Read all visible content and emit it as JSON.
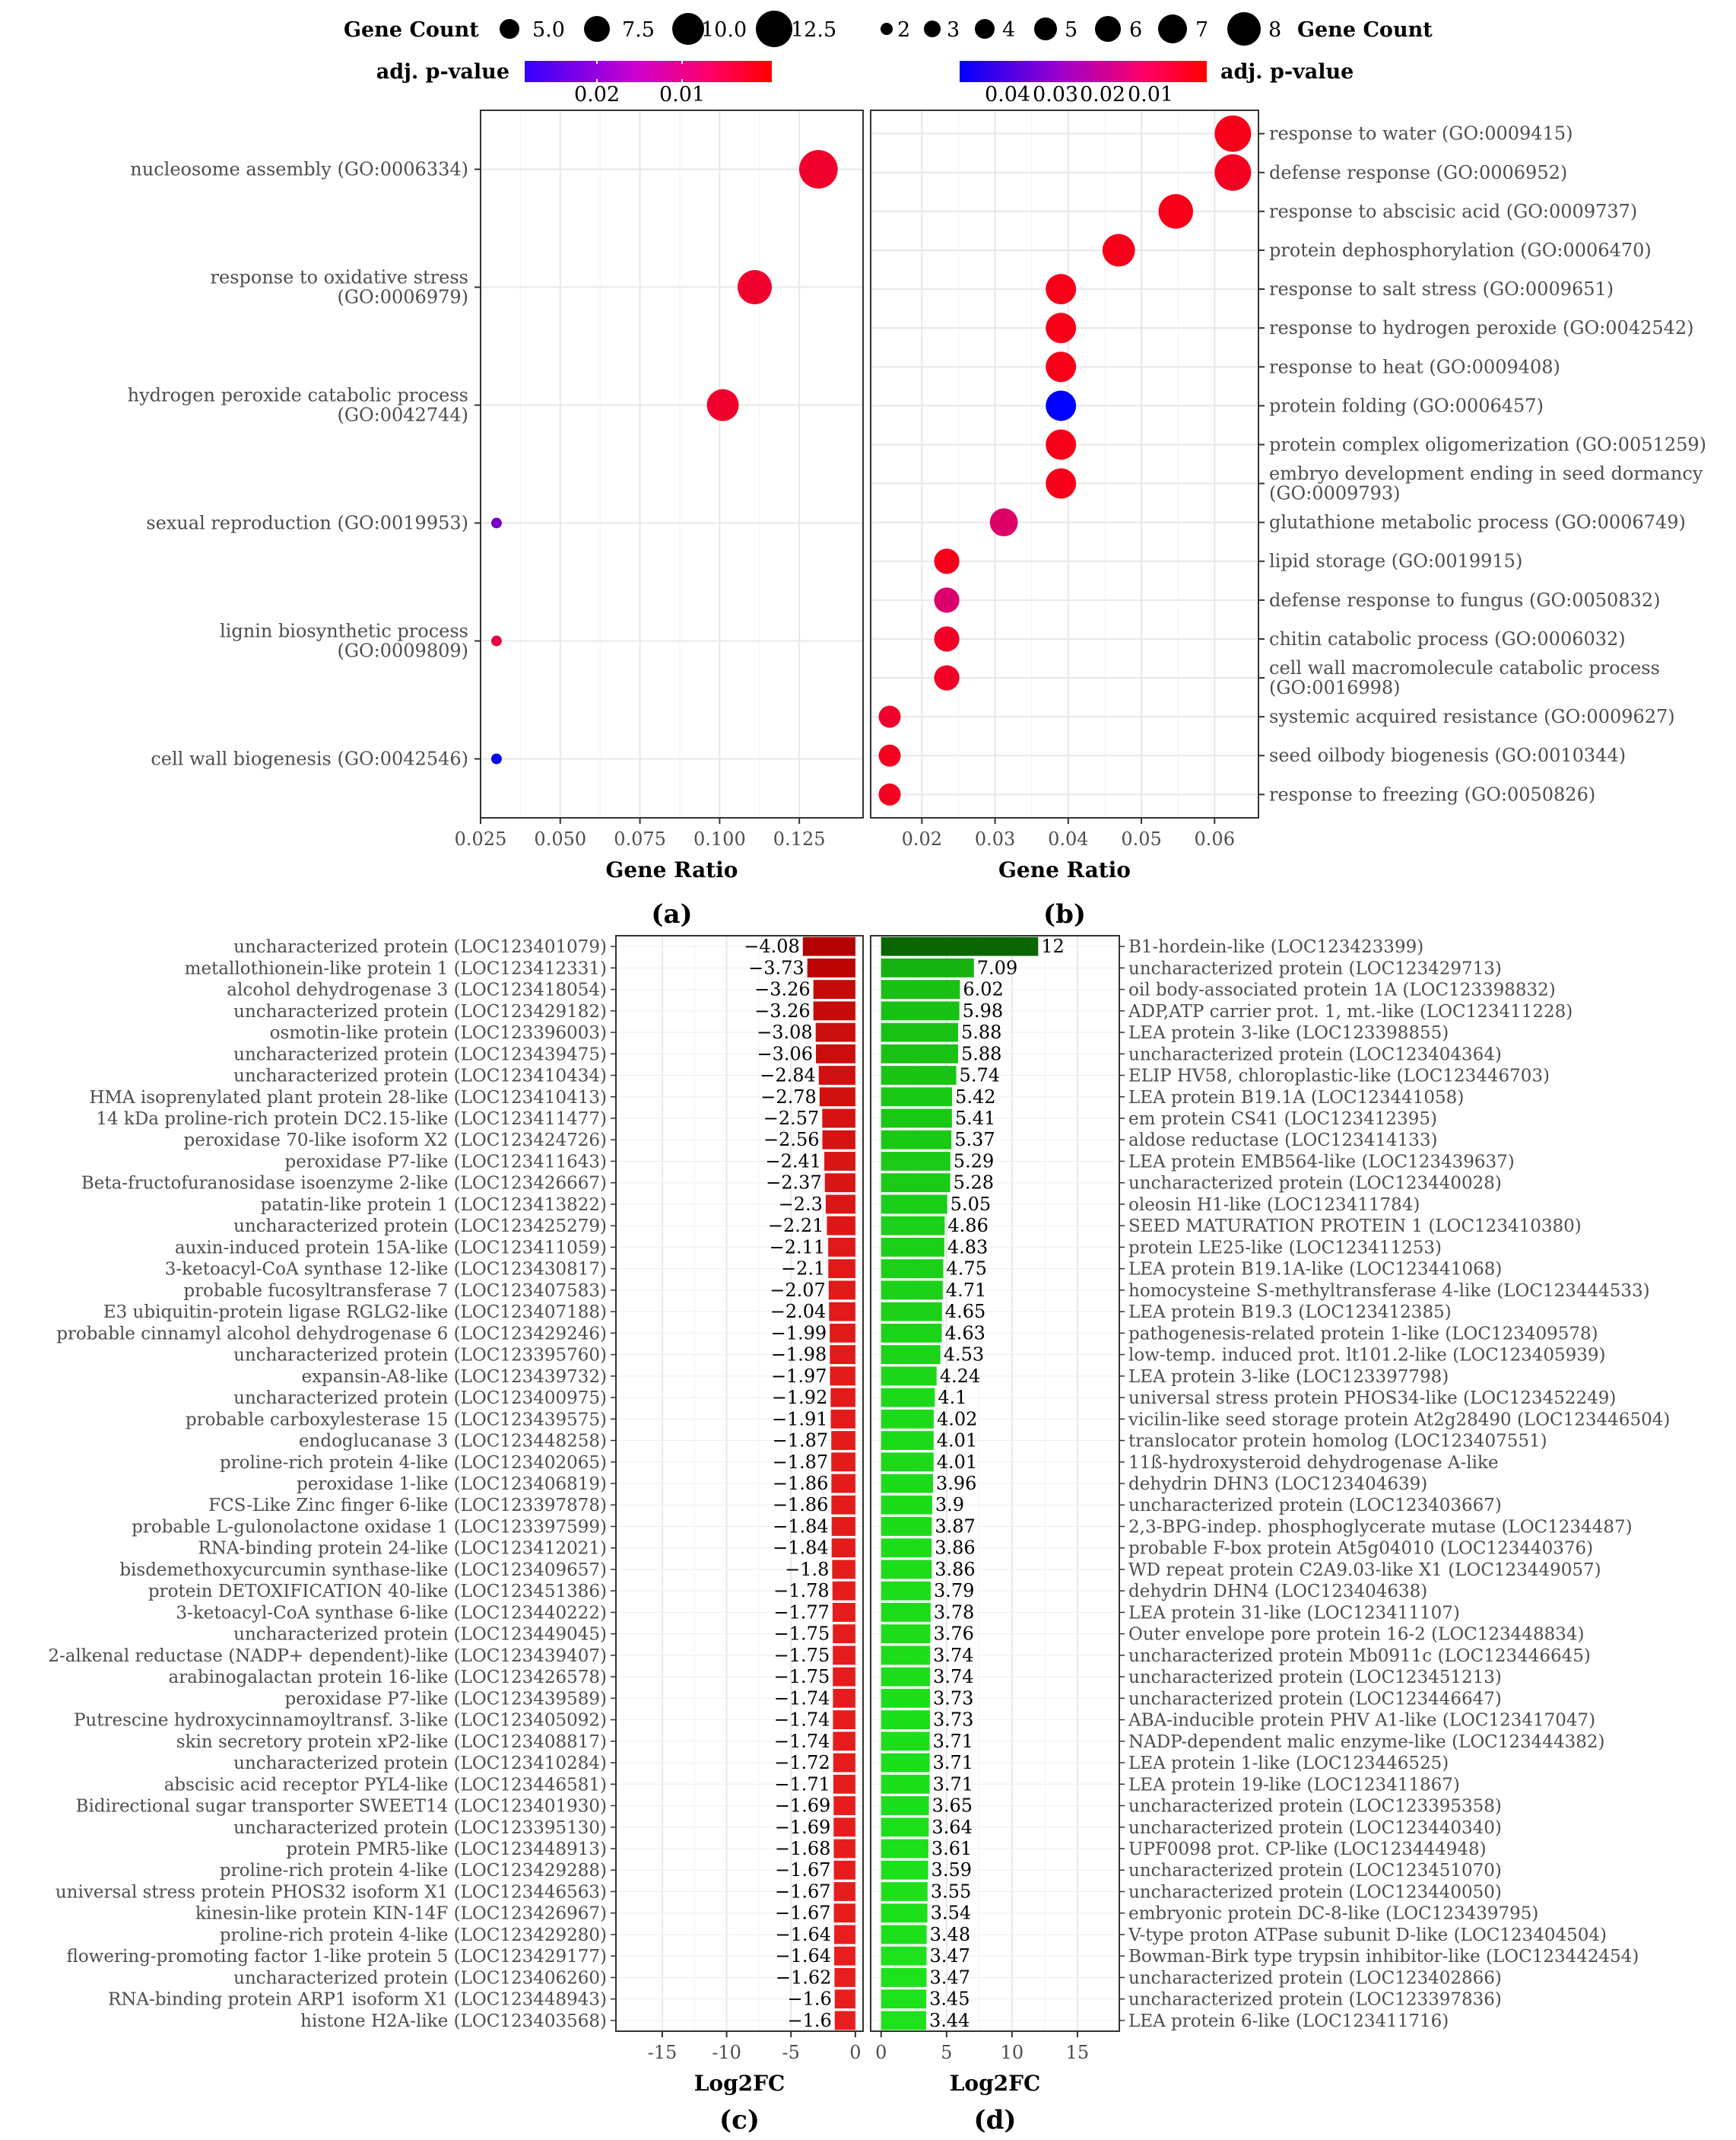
{
  "colors": {
    "p_high": "#0000ff",
    "p_mid": "#cc0099",
    "p_low": "#ff0000",
    "neg_strong": "#b30000",
    "neg": "#ff0000",
    "pos_strong": "#0a6600",
    "pos": "#00ff00"
  },
  "legends": {
    "left": {
      "size_title": "Gene Count",
      "size_keys": [
        "5.0",
        "7.5",
        "10.0",
        "12.5"
      ],
      "color_title": "adj. p-value",
      "color_ticks": [
        "0.02",
        "0.01"
      ]
    },
    "right": {
      "size_title": "Gene Count",
      "size_keys": [
        "2",
        "3",
        "4",
        "5",
        "6",
        "7",
        "8"
      ],
      "color_title": "adj. p-value",
      "color_ticks": [
        "0.04",
        "0.03",
        "0.02",
        "0.01"
      ]
    }
  },
  "chart_data": [
    {
      "panel": "(a)",
      "type": "scatter",
      "xlabel": "Gene Ratio",
      "ylabel": "",
      "xlim": [
        0.025,
        0.145
      ],
      "xticks": [
        "0.025",
        "0.050",
        "0.075",
        "0.100",
        "0.125"
      ],
      "grid": true,
      "points": [
        {
          "label": "nucleosome assembly (GO:0006334)",
          "x": 0.131,
          "count": 13,
          "padj": 0.004
        },
        {
          "label": "response to oxidative stress (GO:0006979)",
          "x": 0.111,
          "count": 11,
          "padj": 0.004
        },
        {
          "label": "hydrogen peroxide catabolic process (GO:0042744)",
          "x": 0.101,
          "count": 10,
          "padj": 0.004
        },
        {
          "label": "sexual reproduction (GO:0019953)",
          "x": 0.03,
          "count": 3,
          "padj": 0.02
        },
        {
          "label": "lignin biosynthetic process (GO:0009809)",
          "x": 0.03,
          "count": 3,
          "padj": 0.006
        },
        {
          "label": "cell wall biogenesis (GO:0042546)",
          "x": 0.03,
          "count": 3,
          "padj": 0.028
        }
      ]
    },
    {
      "panel": "(b)",
      "type": "scatter",
      "xlabel": "Gene Ratio",
      "ylabel": "",
      "xlim": [
        0.013,
        0.066
      ],
      "xticks": [
        "0.02",
        "0.03",
        "0.04",
        "0.05",
        "0.06"
      ],
      "grid": true,
      "points": [
        {
          "label": "response to water (GO:0009415)",
          "x": 0.0625,
          "count": 8,
          "padj": 0.004
        },
        {
          "label": "defense response (GO:0006952)",
          "x": 0.0625,
          "count": 8,
          "padj": 0.005
        },
        {
          "label": "response to abscisic acid (GO:0009737)",
          "x": 0.0547,
          "count": 7,
          "padj": 0.004
        },
        {
          "label": "protein dephosphorylation (GO:0006470)",
          "x": 0.0469,
          "count": 6,
          "padj": 0.004
        },
        {
          "label": "response to salt stress (GO:0009651)",
          "x": 0.039,
          "count": 5,
          "padj": 0.004
        },
        {
          "label": "response to hydrogen peroxide (GO:0042542)",
          "x": 0.039,
          "count": 5,
          "padj": 0.004
        },
        {
          "label": "response to heat (GO:0009408)",
          "x": 0.039,
          "count": 5,
          "padj": 0.004
        },
        {
          "label": "protein folding (GO:0006457)",
          "x": 0.039,
          "count": 5,
          "padj": 0.048
        },
        {
          "label": "protein complex oligomerization (GO:0051259)",
          "x": 0.039,
          "count": 5,
          "padj": 0.004
        },
        {
          "label": "embryo development ending in seed dormancy (GO:0009793)",
          "x": 0.039,
          "count": 5,
          "padj": 0.004
        },
        {
          "label": "glutathione metabolic process (GO:0006749)",
          "x": 0.0312,
          "count": 4,
          "padj": 0.016
        },
        {
          "label": "lipid storage (GO:0019915)",
          "x": 0.0234,
          "count": 3,
          "padj": 0.004
        },
        {
          "label": "defense response to fungus (GO:0050832)",
          "x": 0.0234,
          "count": 3,
          "padj": 0.017
        },
        {
          "label": "chitin catabolic process (GO:0006032)",
          "x": 0.0234,
          "count": 3,
          "padj": 0.006
        },
        {
          "label": "cell wall macromolecule catabolic process (GO:0016998)",
          "x": 0.0234,
          "count": 3,
          "padj": 0.006
        },
        {
          "label": "systemic acquired resistance (GO:0009627)",
          "x": 0.0156,
          "count": 2,
          "padj": 0.007
        },
        {
          "label": "seed oilbody biogenesis (GO:0010344)",
          "x": 0.0156,
          "count": 2,
          "padj": 0.005
        },
        {
          "label": "response to freezing (GO:0050826)",
          "x": 0.0156,
          "count": 2,
          "padj": 0.005
        }
      ]
    },
    {
      "panel": "(c)",
      "type": "bar",
      "xlabel": "Log2FC",
      "ylabel": "",
      "xlim": [
        -18.6,
        0.6
      ],
      "xticks": [
        "-15",
        "-10",
        "-5",
        "0"
      ],
      "grid": true,
      "categories": [
        "uncharacterized protein (LOC123401079)",
        "metallothionein-like protein 1 (LOC123412331)",
        "alcohol dehydrogenase 3 (LOC123418054)",
        "uncharacterized protein (LOC123429182)",
        "osmotin-like protein (LOC123396003)",
        "uncharacterized protein (LOC123439475)",
        "uncharacterized protein (LOC123410434)",
        "HMA isoprenylated plant protein 28-like (LOC123410413)",
        "14 kDa proline-rich protein DC2.15-like (LOC123411477)",
        "peroxidase 70-like isoform X2 (LOC123424726)",
        "peroxidase P7-like (LOC123411643)",
        "Beta-fructofuranosidase isoenzyme 2-like (LOC123426667)",
        "patatin-like protein 1 (LOC123413822)",
        "uncharacterized protein (LOC123425279)",
        "auxin-induced protein 15A-like (LOC123411059)",
        "3-ketoacyl-CoA synthase 12-like (LOC123430817)",
        "probable fucosyltransferase 7 (LOC123407583)",
        "E3 ubiquitin-protein ligase RGLG2-like (LOC123407188)",
        "probable cinnamyl alcohol dehydrogenase 6 (LOC123429246)",
        "uncharacterized protein (LOC123395760)",
        "expansin-A8-like (LOC123439732)",
        "uncharacterized protein (LOC123400975)",
        "probable carboxylesterase 15 (LOC123439575)",
        "endoglucanase 3 (LOC123448258)",
        "proline-rich protein 4-like (LOC123402065)",
        "peroxidase 1-like (LOC123406819)",
        "FCS-Like Zinc finger 6-like (LOC123397878)",
        "probable L-gulonolactone oxidase 1 (LOC123397599)",
        "RNA-binding protein 24-like (LOC123412021)",
        "bisdemethoxycurcumin synthase-like (LOC123409657)",
        "protein DETOXIFICATION 40-like (LOC123451386)",
        "3-ketoacyl-CoA synthase 6-like (LOC123440222)",
        "uncharacterized protein (LOC123449045)",
        "2-alkenal reductase (NADP+ dependent)-like (LOC123439407)",
        "arabinogalactan protein 16-like (LOC123426578)",
        "peroxidase P7-like (LOC123439589)",
        "Putrescine hydroxycinnamoyltransf. 3-like (LOC123405092)",
        "skin secretory protein xP2-like (LOC123408817)",
        "uncharacterized protein (LOC123410284)",
        "abscisic acid receptor PYL4-like (LOC123446581)",
        "Bidirectional sugar transporter SWEET14 (LOC123401930)",
        "uncharacterized protein (LOC123395130)",
        "protein PMR5-like (LOC123448913)",
        "proline-rich protein 4-like (LOC123429288)",
        "universal stress protein PHOS32 isoform X1 (LOC123446563)",
        "kinesin-like protein KIN-14F (LOC123426967)",
        "proline-rich protein 4-like (LOC123429280)",
        "flowering-promoting factor 1-like protein 5 (LOC123429177)",
        "uncharacterized protein (LOC123406260)",
        "RNA-binding protein ARP1 isoform X1 (LOC123448943)",
        "histone H2A-like (LOC123403568)"
      ],
      "values": [
        -4.08,
        -3.73,
        -3.26,
        -3.26,
        -3.08,
        -3.06,
        -2.84,
        -2.78,
        -2.57,
        -2.56,
        -2.41,
        -2.37,
        -2.3,
        -2.21,
        -2.11,
        -2.1,
        -2.07,
        -2.04,
        -1.99,
        -1.98,
        -1.97,
        -1.92,
        -1.91,
        -1.87,
        -1.87,
        -1.86,
        -1.86,
        -1.84,
        -1.84,
        -1.8,
        -1.78,
        -1.77,
        -1.75,
        -1.75,
        -1.75,
        -1.74,
        -1.74,
        -1.74,
        -1.72,
        -1.71,
        -1.69,
        -1.69,
        -1.68,
        -1.67,
        -1.67,
        -1.67,
        -1.64,
        -1.64,
        -1.62,
        -1.6,
        -1.6
      ],
      "value_labels": [
        "−4.08",
        "−3.73",
        "−3.26",
        "−3.26",
        "−3.08",
        "−3.06",
        "−2.84",
        "−2.78",
        "−2.57",
        "−2.56",
        "−2.41",
        "−2.37",
        "−2.3",
        "−2.21",
        "−2.11",
        "−2.1",
        "−2.07",
        "−2.04",
        "−1.99",
        "−1.98",
        "−1.97",
        "−1.92",
        "−1.91",
        "−1.87",
        "−1.87",
        "−1.86",
        "−1.86",
        "−1.84",
        "−1.84",
        "−1.8",
        "−1.78",
        "−1.77",
        "−1.75",
        "−1.75",
        "−1.75",
        "−1.74",
        "−1.74",
        "−1.74",
        "−1.72",
        "−1.71",
        "−1.69",
        "−1.69",
        "−1.68",
        "−1.67",
        "−1.67",
        "−1.67",
        "−1.64",
        "−1.64",
        "−1.62",
        "−1.6",
        "−1.6"
      ]
    },
    {
      "panel": "(d)",
      "type": "bar",
      "xlabel": "Log2FC",
      "ylabel": "",
      "xlim": [
        -0.8,
        18.2
      ],
      "xticks": [
        "0",
        "5",
        "10",
        "15"
      ],
      "grid": true,
      "categories": [
        "B1-hordein-like (LOC123423399)",
        "uncharacterized protein (LOC123429713)",
        "oil body-associated protein 1A (LOC123398832)",
        "ADP,ATP carrier prot. 1, mt.-like (LOC123411228)",
        "LEA protein 3-like (LOC123398855)",
        "uncharacterized protein (LOC123404364)",
        "ELIP HV58, chloroplastic-like (LOC123446703)",
        "LEA protein B19.1A (LOC123441058)",
        "em protein CS41 (LOC123412395)",
        "aldose reductase (LOC123414133)",
        "LEA protein EMB564-like (LOC123439637)",
        "uncharacterized protein (LOC123440028)",
        "oleosin H1-like (LOC123411784)",
        "SEED MATURATION PROTEIN 1 (LOC123410380)",
        "protein LE25-like (LOC123411253)",
        "LEA protein B19.1A-like (LOC123441068)",
        "homocysteine S-methyltransferase 4-like (LOC123444533)",
        "LEA protein B19.3 (LOC123412385)",
        "pathogenesis-related protein 1-like (LOC123409578)",
        "low-temp. induced prot. lt101.2-like (LOC123405939)",
        "LEA protein 3-like (LOC123397798)",
        "universal stress protein PHOS34-like (LOC123452249)",
        "vicilin-like seed storage protein At2g28490 (LOC123446504)",
        "translocator protein homolog (LOC123407551)",
        "11ß-hydroxysteroid dehydrogenase A-like",
        "dehydrin DHN3 (LOC123404639)",
        "uncharacterized protein (LOC123403667)",
        "2,3-BPG-indep. phosphoglycerate mutase (LOC1234487)",
        "probable F-box protein At5g04010 (LOC123440376)",
        "WD repeat protein C2A9.03-like X1 (LOC123449057)",
        "dehydrin DHN4 (LOC123404638)",
        "LEA protein 31-like (LOC123411107)",
        "Outer envelope pore protein 16-2 (LOC123448834)",
        "uncharacterized protein Mb0911c (LOC123446645)",
        "uncharacterized protein (LOC123451213)",
        "uncharacterized protein (LOC123446647)",
        "ABA-inducible protein PHV A1-like (LOC123417047)",
        "NADP-dependent malic enzyme-like (LOC123444382)",
        "LEA protein 1-like (LOC123446525)",
        "LEA protein 19-like (LOC123411867)",
        "uncharacterized protein (LOC123395358)",
        "uncharacterized protein (LOC123440340)",
        "UPF0098 prot. CP-like (LOC123444948)",
        "uncharacterized protein (LOC123451070)",
        "uncharacterized protein (LOC123440050)",
        "embryonic protein DC-8-like (LOC123439795)",
        "V-type proton ATPase subunit D-like (LOC123404504)",
        "Bowman-Birk type trypsin inhibitor-like (LOC123442454)",
        "uncharacterized protein (LOC123402866)",
        "uncharacterized protein (LOC123397836)",
        "LEA protein 6-like (LOC123411716)"
      ],
      "values": [
        12,
        7.09,
        6.02,
        5.98,
        5.88,
        5.88,
        5.74,
        5.42,
        5.41,
        5.37,
        5.29,
        5.28,
        5.05,
        4.86,
        4.83,
        4.75,
        4.71,
        4.65,
        4.63,
        4.53,
        4.24,
        4.1,
        4.02,
        4.01,
        4.01,
        3.96,
        3.9,
        3.87,
        3.86,
        3.86,
        3.79,
        3.78,
        3.76,
        3.74,
        3.74,
        3.73,
        3.73,
        3.71,
        3.71,
        3.71,
        3.65,
        3.64,
        3.61,
        3.59,
        3.55,
        3.54,
        3.48,
        3.47,
        3.47,
        3.45,
        3.44
      ],
      "value_labels": [
        "12",
        "7.09",
        "6.02",
        "5.98",
        "5.88",
        "5.88",
        "5.74",
        "5.42",
        "5.41",
        "5.37",
        "5.29",
        "5.28",
        "5.05",
        "4.86",
        "4.83",
        "4.75",
        "4.71",
        "4.65",
        "4.63",
        "4.53",
        "4.24",
        "4.1",
        "4.02",
        "4.01",
        "4.01",
        "3.96",
        "3.9",
        "3.87",
        "3.86",
        "3.86",
        "3.79",
        "3.78",
        "3.76",
        "3.74",
        "3.74",
        "3.73",
        "3.73",
        "3.71",
        "3.71",
        "3.71",
        "3.65",
        "3.64",
        "3.61",
        "3.59",
        "3.55",
        "3.54",
        "3.48",
        "3.47",
        "3.47",
        "3.45",
        "3.44"
      ]
    }
  ]
}
